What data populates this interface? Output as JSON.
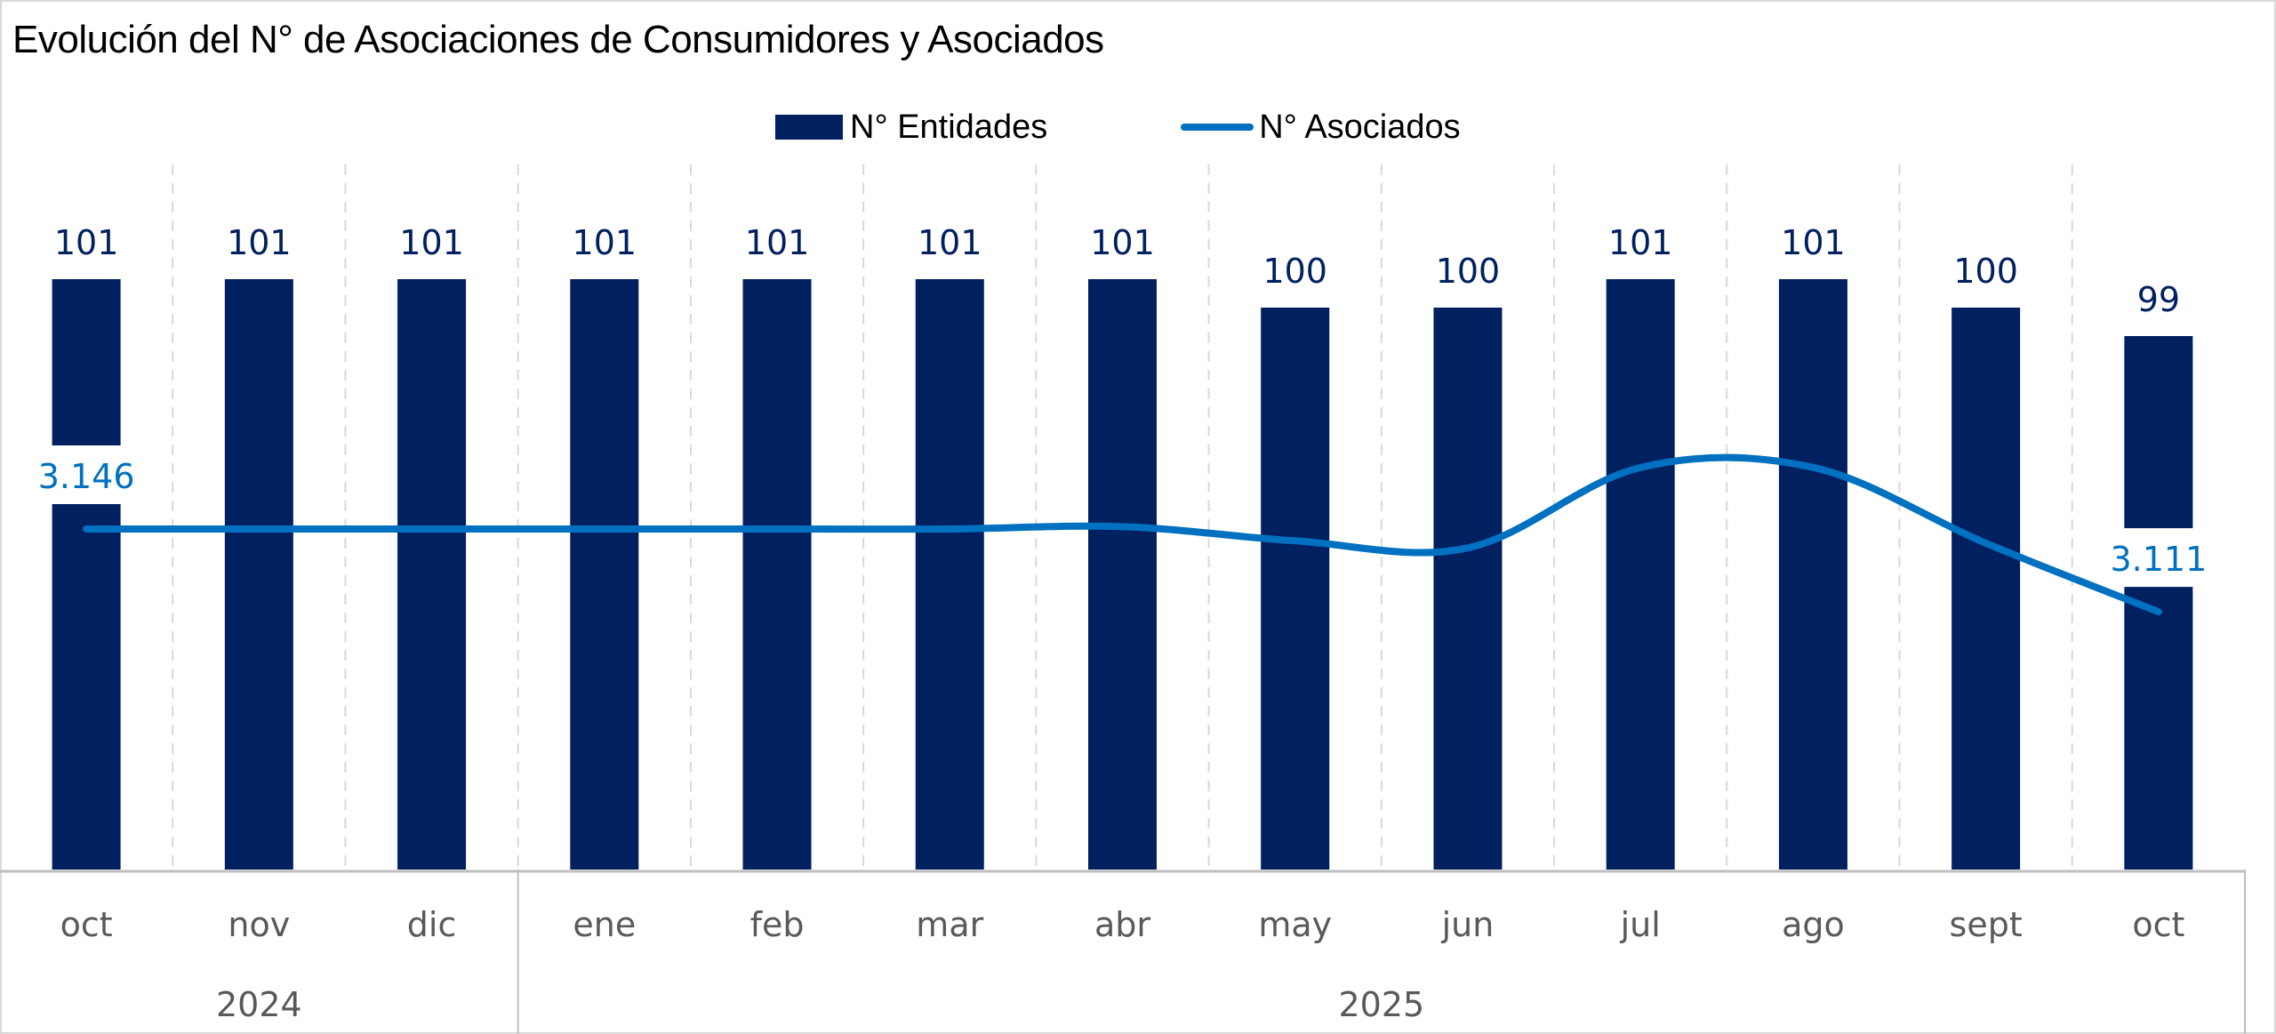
{
  "chart_data": {
    "type": "bar+line",
    "title": "Evolución del N° de Asociaciones de Consumidores y Asociados",
    "categories": [
      "oct",
      "nov",
      "dic",
      "ene",
      "feb",
      "mar",
      "abr",
      "may",
      "jun",
      "jul",
      "ago",
      "sept",
      "oct"
    ],
    "groups": [
      {
        "label": "2024",
        "count": 3
      },
      {
        "label": "2025",
        "count": 10
      }
    ],
    "series": [
      {
        "name": "N° Entidades",
        "type": "bar",
        "color": "#002060",
        "values": [
          101,
          101,
          101,
          101,
          101,
          101,
          101,
          100,
          100,
          101,
          101,
          100,
          99
        ],
        "labels": [
          "101",
          "101",
          "101",
          "101",
          "101",
          "101",
          "101",
          "100",
          "100",
          "101",
          "101",
          "100",
          "99"
        ]
      },
      {
        "name": "N° Asociados",
        "type": "line",
        "smooth": true,
        "color": "#0070c0",
        "values": [
          3146,
          3146,
          3146,
          3146,
          3146,
          3146,
          3147,
          3141,
          3138,
          3172,
          3172,
          3140,
          3111
        ],
        "point_labels": [
          {
            "index": 0,
            "text": "3.146"
          },
          {
            "index": 12,
            "text": "3.111"
          }
        ]
      }
    ],
    "legend": {
      "position": "top",
      "items": [
        "N° Entidades",
        "N° Asociados"
      ]
    },
    "grid": "vertical-dashed",
    "xlabel": "",
    "ylabel": ""
  }
}
